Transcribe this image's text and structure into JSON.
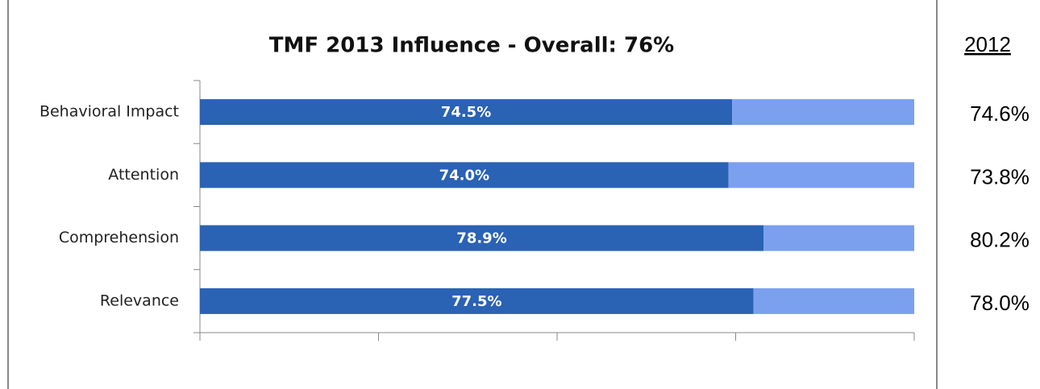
{
  "chart_data": {
    "type": "stacked_bar_horizontal",
    "title": "TMF 2013 Influence - Overall: 76%",
    "categories": [
      "Behavioral Impact",
      "Attention",
      "Comprehension",
      "Relevance"
    ],
    "series": [
      {
        "color": "#2a62b4",
        "values": [
          74.5,
          74.0,
          78.9,
          77.5
        ],
        "value_labels": [
          "74.5%",
          "74.0%",
          "78.9%",
          "77.5%"
        ]
      },
      {
        "color": "#7aa0ee",
        "values": [
          25.5,
          26.0,
          21.1,
          22.5
        ]
      }
    ],
    "xlim": [
      0,
      100
    ],
    "xticks": [
      0,
      25,
      50,
      75,
      100
    ]
  },
  "comparison": {
    "title": "2012",
    "labels": [
      "74.6%",
      "73.8%",
      "80.2%",
      "78.0%"
    ]
  }
}
